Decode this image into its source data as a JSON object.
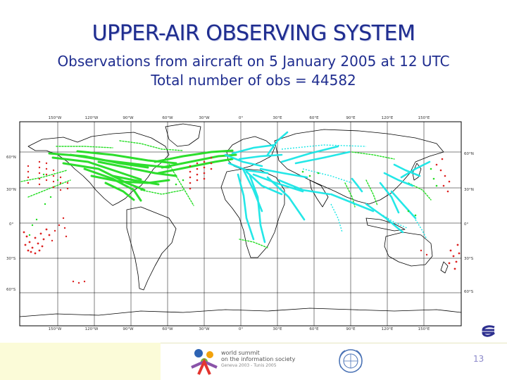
{
  "title": "UPPER-AIR OBSERVING SYSTEM",
  "subtitle_line1": "Observations from aircraft on 5 January 2005 at 12 UTC",
  "subtitle_line2": "Total number of obs = 44582",
  "map": {
    "longitude_labels": [
      "150°W",
      "120°W",
      "90°W",
      "60°W",
      "30°W",
      "0°",
      "30°E",
      "60°E",
      "90°E",
      "120°E",
      "150°E"
    ],
    "latitude_labels_left": [
      "60°N",
      "30°N",
      "0°",
      "30°S",
      "60°S"
    ],
    "latitude_labels_right": [
      "60°N",
      "30°N",
      "0°",
      "30°S",
      "60°S"
    ],
    "colors": {
      "green_obs": "#22dd22",
      "cyan_obs": "#19e6e6",
      "red_obs": "#dd2222",
      "coast": "#000000"
    }
  },
  "footer": {
    "wsis_line1": "world summit",
    "wsis_line2": "on the information society",
    "wsis_dates": "Geneva 2003 - Tunis 2005",
    "page_number": "13"
  }
}
